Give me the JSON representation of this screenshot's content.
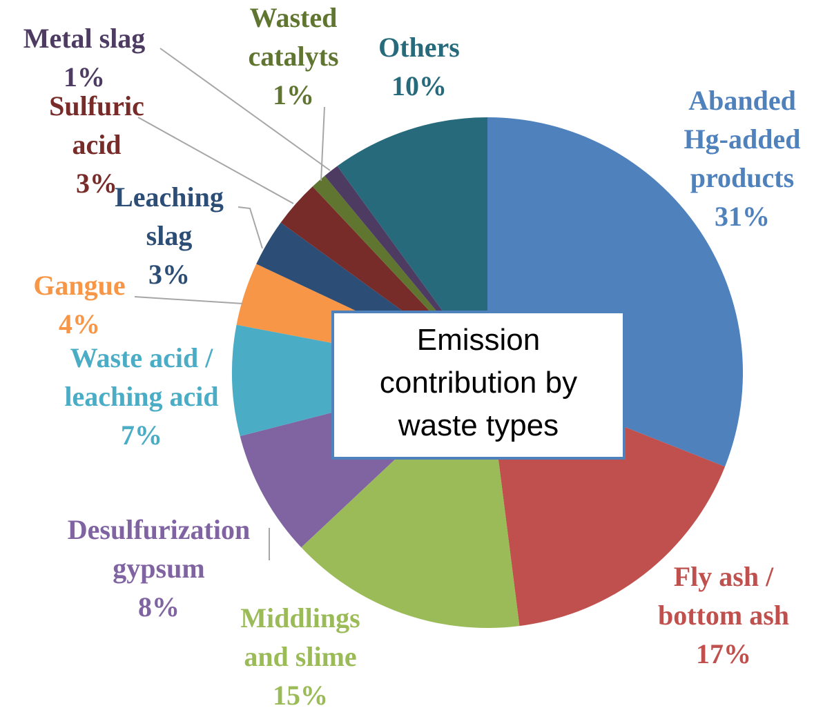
{
  "chart_data": {
    "type": "pie",
    "title": "Emission\ncontribution by\nwaste types",
    "categories": [
      "Abanded\nHg-added\nproducts",
      "Fly ash /\nbottom ash",
      "Middlings\nand slime",
      "Desulfurization\ngypsum",
      "Waste acid /\nleaching acid",
      "Gangue",
      "Leaching\nslag",
      "Sulfuric\nacid",
      "Wasted\ncatalyts",
      "Metal slag",
      "Others"
    ],
    "values": [
      31,
      17,
      15,
      8,
      7,
      4,
      3,
      3,
      1,
      1,
      10
    ],
    "value_labels": [
      "31%",
      "17%",
      "15%",
      "8%",
      "7%",
      "4%",
      "3%",
      "3%",
      "1%",
      "1%",
      "10%"
    ],
    "colors": [
      "#4f81bd",
      "#c0504d",
      "#9bbb59",
      "#8064a2",
      "#4bacc6",
      "#f79646",
      "#2c4d75",
      "#772c2a",
      "#5f7530",
      "#4d3b62",
      "#276a7c"
    ]
  }
}
